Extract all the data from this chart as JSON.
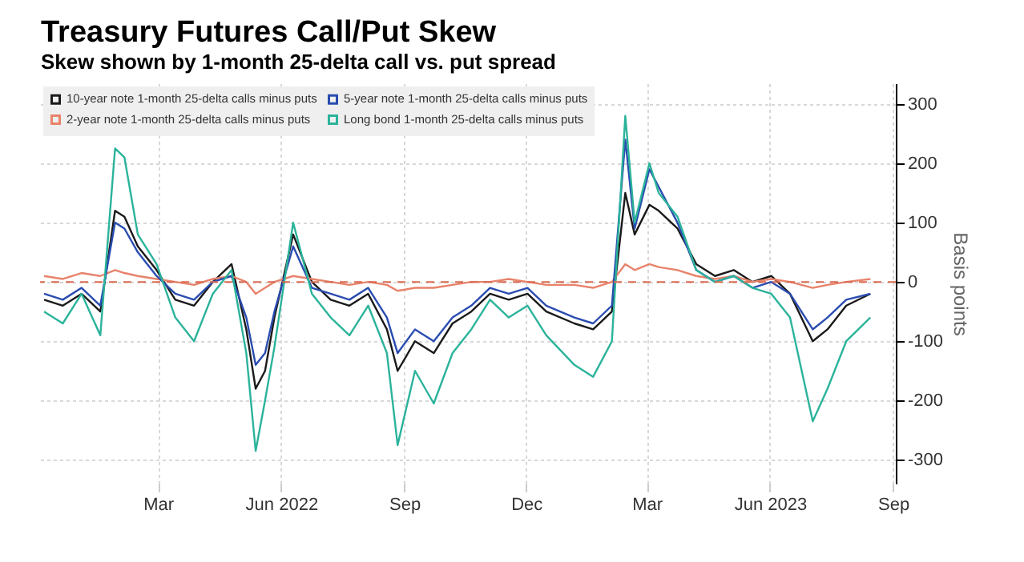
{
  "chart_data": {
    "type": "line",
    "title": "Treasury Futures Call/Put Skew",
    "subtitle": "Skew shown by 1-month 25-delta call vs. put spread",
    "ylabel": "Basis points",
    "x": [
      "2021-12-06",
      "2021-12-20",
      "2022-01-03",
      "2022-01-17",
      "2022-01-28",
      "2022-02-04",
      "2022-02-14",
      "2022-02-28",
      "2022-03-14",
      "2022-03-28",
      "2022-04-11",
      "2022-04-25",
      "2022-05-06",
      "2022-05-13",
      "2022-05-20",
      "2022-05-27",
      "2022-06-10",
      "2022-06-24",
      "2022-07-08",
      "2022-07-22",
      "2022-08-05",
      "2022-08-19",
      "2022-08-27",
      "2022-09-09",
      "2022-09-23",
      "2022-10-07",
      "2022-10-21",
      "2022-11-04",
      "2022-11-18",
      "2022-12-02",
      "2022-12-16",
      "2023-01-06",
      "2023-01-20",
      "2023-02-03",
      "2023-02-13",
      "2023-02-20",
      "2023-03-03",
      "2023-03-10",
      "2023-03-24",
      "2023-04-07",
      "2023-04-21",
      "2023-05-05",
      "2023-05-19",
      "2023-06-02",
      "2023-06-16",
      "2023-07-03",
      "2023-07-14",
      "2023-07-28",
      "2023-08-15"
    ],
    "series": [
      {
        "name": "10-year note 1-month 25-delta calls minus puts",
        "color": "#1a1a1a",
        "values": [
          -30,
          -40,
          -20,
          -50,
          120,
          110,
          60,
          20,
          -30,
          -40,
          0,
          30,
          -80,
          -180,
          -150,
          -60,
          80,
          0,
          -30,
          -40,
          -20,
          -80,
          -150,
          -100,
          -120,
          -70,
          -50,
          -20,
          -30,
          -20,
          -50,
          -70,
          -80,
          -50,
          150,
          80,
          130,
          120,
          90,
          30,
          10,
          20,
          0,
          10,
          -20,
          -100,
          -80,
          -40,
          -20
        ]
      },
      {
        "name": "2-year note 1-month 25-delta calls minus puts",
        "color": "#e8836b",
        "values": [
          10,
          5,
          15,
          10,
          20,
          15,
          10,
          5,
          0,
          -5,
          5,
          10,
          0,
          -20,
          -10,
          0,
          10,
          5,
          0,
          -5,
          0,
          -5,
          -15,
          -10,
          -10,
          -5,
          0,
          0,
          5,
          0,
          -5,
          -5,
          -10,
          0,
          30,
          20,
          30,
          25,
          20,
          10,
          5,
          10,
          0,
          5,
          0,
          -10,
          -5,
          0,
          5
        ]
      },
      {
        "name": "5-year note 1-month 25-delta calls minus puts",
        "color": "#2a4cb0",
        "values": [
          -20,
          -30,
          -10,
          -40,
          100,
          90,
          50,
          10,
          -20,
          -30,
          0,
          10,
          -60,
          -140,
          -120,
          -50,
          60,
          -10,
          -20,
          -30,
          -10,
          -60,
          -120,
          -80,
          -100,
          -60,
          -40,
          -10,
          -20,
          -10,
          -40,
          -60,
          -70,
          -40,
          240,
          90,
          190,
          160,
          100,
          20,
          0,
          10,
          -10,
          0,
          -20,
          -80,
          -60,
          -30,
          -20
        ]
      },
      {
        "name": "Long bond 1-month 25-delta calls minus puts",
        "color": "#2bb39b",
        "values": [
          -50,
          -70,
          -20,
          -90,
          225,
          210,
          80,
          30,
          -60,
          -100,
          -20,
          20,
          -120,
          -285,
          -200,
          -110,
          100,
          -20,
          -60,
          -90,
          -40,
          -120,
          -275,
          -150,
          -205,
          -120,
          -80,
          -30,
          -60,
          -40,
          -90,
          -140,
          -160,
          -100,
          280,
          100,
          200,
          150,
          110,
          20,
          0,
          10,
          -10,
          -20,
          -60,
          -235,
          -180,
          -100,
          -60
        ]
      }
    ],
    "xlim": [
      "2021-12-03",
      "2023-09-03"
    ],
    "xticks": [
      {
        "value": "2022-03-01",
        "label": "Mar"
      },
      {
        "value": "2022-06-01",
        "label": "Jun\n2022"
      },
      {
        "value": "2022-09-01",
        "label": "Sep"
      },
      {
        "value": "2022-12-01",
        "label": "Dec"
      },
      {
        "value": "2023-03-01",
        "label": "Mar"
      },
      {
        "value": "2023-06-01",
        "label": "Jun\n2023"
      },
      {
        "value": "2023-09-01",
        "label": "Sep"
      }
    ],
    "ylim": [
      -340,
      335
    ],
    "yticks": [
      -300,
      -200,
      -100,
      0,
      100,
      200,
      300
    ],
    "ref_lines": [
      {
        "axis": "y",
        "value": 0,
        "color": "#d9694f",
        "line_style": "dashed"
      }
    ],
    "grid": true,
    "legend": "top left",
    "line_style": "solid",
    "marker": "none"
  }
}
